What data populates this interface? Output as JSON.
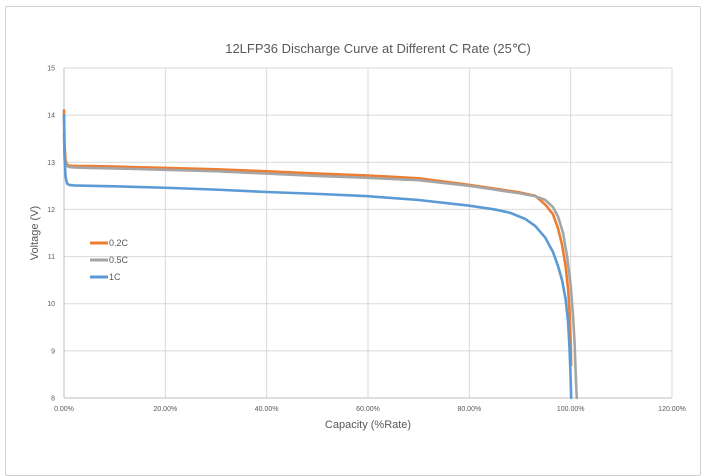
{
  "chart_data": {
    "type": "line",
    "title": "12LFP36 Discharge Curve at Different C Rate (25℃)",
    "xlabel": "Capacity (%Rate)",
    "ylabel": "Voltage (V)",
    "xlim": [
      0,
      120
    ],
    "ylim": [
      8,
      15
    ],
    "xticks": [
      0,
      20,
      40,
      60,
      80,
      100,
      120
    ],
    "xtick_labels": [
      "0.00%",
      "20.00%",
      "40.00%",
      "60.00%",
      "80.00%",
      "100.00%",
      "120.00%"
    ],
    "yticks": [
      8,
      9,
      10,
      11,
      12,
      13,
      14,
      15
    ],
    "ytick_labels": [
      "8",
      "9",
      "10",
      "11",
      "12",
      "13",
      "14",
      "15"
    ],
    "grid": true,
    "legend_position": "middle-left",
    "series": [
      {
        "name": "0.2C",
        "color": "#ED7D31",
        "x": [
          0,
          0.1,
          0.3,
          0.6,
          1.0,
          2,
          5,
          10,
          20,
          30,
          40,
          50,
          60,
          70,
          80,
          85,
          90,
          93,
          95,
          96.5,
          97.5,
          98.3,
          99.0,
          99.5,
          99.8,
          100.0,
          100.1
        ],
        "y": [
          14.1,
          13.4,
          13.05,
          12.95,
          12.93,
          12.92,
          12.92,
          12.91,
          12.88,
          12.85,
          12.81,
          12.76,
          12.72,
          12.66,
          12.52,
          12.44,
          12.36,
          12.29,
          12.1,
          11.9,
          11.6,
          11.25,
          10.8,
          10.3,
          9.8,
          9.2,
          8.7
        ]
      },
      {
        "name": "0.5C",
        "color": "#A5A5A5",
        "x": [
          0,
          0.1,
          0.3,
          0.6,
          1.0,
          2,
          5,
          10,
          20,
          30,
          40,
          50,
          60,
          70,
          80,
          85,
          90,
          93,
          95,
          96.5,
          97.5,
          98.5,
          99.3,
          100.0,
          100.5,
          100.8,
          101.0,
          101.2
        ],
        "y": [
          13.6,
          13.2,
          12.98,
          12.92,
          12.9,
          12.89,
          12.88,
          12.87,
          12.84,
          12.81,
          12.76,
          12.71,
          12.67,
          12.62,
          12.5,
          12.42,
          12.34,
          12.28,
          12.2,
          12.05,
          11.85,
          11.5,
          11.0,
          10.4,
          9.7,
          9.1,
          8.5,
          8.0
        ]
      },
      {
        "name": "1C",
        "color": "#5B9BD5",
        "x": [
          0,
          0.1,
          0.3,
          0.6,
          1.0,
          2,
          5,
          10,
          20,
          30,
          40,
          50,
          60,
          70,
          80,
          85,
          88,
          91,
          93,
          95,
          96.5,
          97.5,
          98.3,
          99.0,
          99.5,
          99.8,
          100.0,
          100.1
        ],
        "y": [
          14.0,
          13.1,
          12.7,
          12.55,
          12.52,
          12.51,
          12.5,
          12.49,
          12.46,
          12.42,
          12.37,
          12.33,
          12.28,
          12.2,
          12.08,
          12.0,
          11.93,
          11.8,
          11.65,
          11.4,
          11.1,
          10.8,
          10.5,
          10.1,
          9.6,
          9.0,
          8.4,
          8.0
        ]
      }
    ]
  }
}
